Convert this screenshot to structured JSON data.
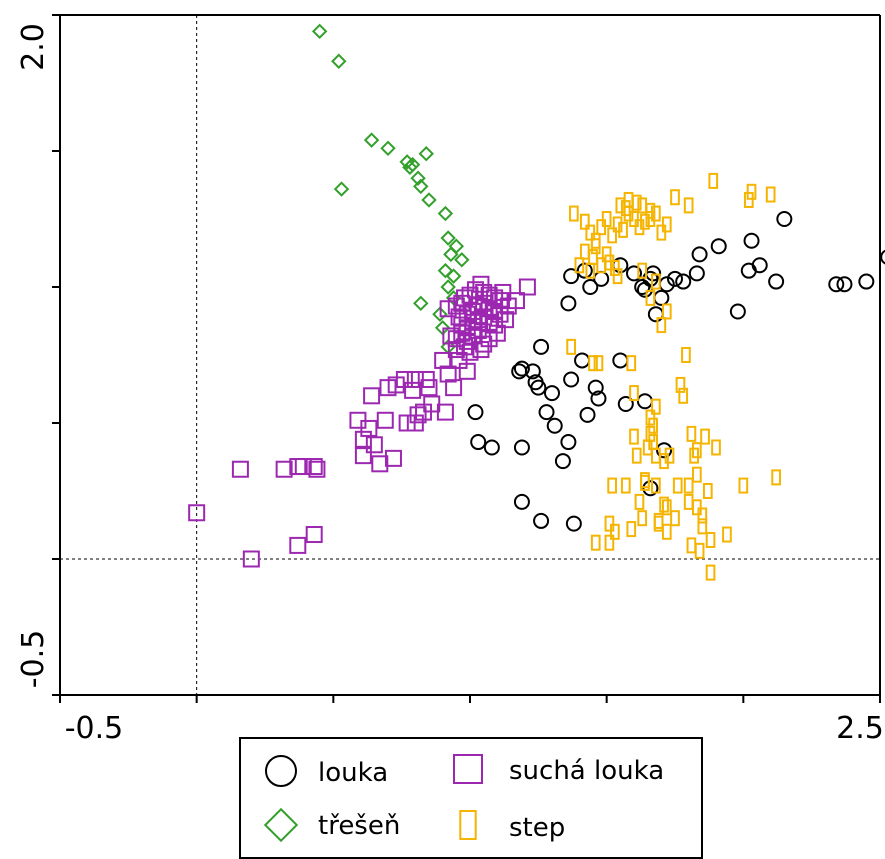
{
  "chart_data": {
    "type": "scatter",
    "title": "",
    "xlabel": "",
    "ylabel": "",
    "xlim": [
      -0.5,
      2.5
    ],
    "ylim": [
      -0.5,
      2.0
    ],
    "x_tick_labels": [
      "-0.5",
      "2.5"
    ],
    "y_tick_labels": [
      "-0.5",
      "2.0"
    ],
    "x_ticks": [
      -0.5,
      0.0,
      0.5,
      1.0,
      1.5,
      2.0,
      2.5
    ],
    "y_ticks": [
      -0.5,
      0.0,
      0.5,
      1.0,
      1.5,
      2.0
    ],
    "reference_lines": {
      "x": 0,
      "y": 0
    },
    "grid": false,
    "legend_position": "bottom-center",
    "series": [
      {
        "name": "louka",
        "marker": "circle",
        "color": "#000000",
        "points": [
          [
            1.37,
            1.04
          ],
          [
            1.42,
            1.06
          ],
          [
            1.44,
            1.0
          ],
          [
            1.36,
            0.94
          ],
          [
            1.48,
            1.03
          ],
          [
            1.55,
            1.08
          ],
          [
            1.6,
            1.05
          ],
          [
            1.63,
            1.0
          ],
          [
            1.67,
            1.05
          ],
          [
            1.72,
            1.01
          ],
          [
            1.75,
            1.03
          ],
          [
            1.78,
            1.02
          ],
          [
            1.83,
            1.05
          ],
          [
            1.66,
            1.03
          ],
          [
            1.64,
            0.99
          ],
          [
            1.7,
            0.96
          ],
          [
            1.68,
            0.9
          ],
          [
            1.84,
            1.12
          ],
          [
            1.91,
            1.15
          ],
          [
            2.03,
            1.17
          ],
          [
            2.15,
            1.25
          ],
          [
            2.02,
            1.06
          ],
          [
            2.06,
            1.08
          ],
          [
            1.98,
            0.91
          ],
          [
            2.12,
            1.02
          ],
          [
            2.34,
            1.01
          ],
          [
            2.37,
            1.01
          ],
          [
            2.45,
            1.02
          ],
          [
            2.53,
            1.11
          ],
          [
            1.26,
            0.78
          ],
          [
            1.19,
            0.7
          ],
          [
            1.18,
            0.69
          ],
          [
            1.23,
            0.69
          ],
          [
            1.24,
            0.65
          ],
          [
            1.25,
            0.63
          ],
          [
            1.3,
            0.61
          ],
          [
            1.37,
            0.66
          ],
          [
            1.41,
            0.73
          ],
          [
            1.46,
            0.63
          ],
          [
            1.47,
            0.59
          ],
          [
            1.57,
            0.57
          ],
          [
            1.64,
            0.58
          ],
          [
            1.55,
            0.73
          ],
          [
            1.43,
            0.53
          ],
          [
            1.31,
            0.49
          ],
          [
            1.36,
            0.43
          ],
          [
            1.34,
            0.36
          ],
          [
            1.28,
            0.54
          ],
          [
            1.08,
            0.41
          ],
          [
            1.02,
            0.54
          ],
          [
            1.03,
            0.43
          ],
          [
            1.19,
            0.41
          ],
          [
            1.66,
            0.26
          ],
          [
            1.71,
            0.4
          ],
          [
            1.38,
            0.13
          ],
          [
            1.26,
            0.14
          ],
          [
            1.19,
            0.21
          ]
        ]
      },
      {
        "name": "třešeň",
        "marker": "diamond",
        "color": "#33a02c",
        "points": [
          [
            0.45,
            1.94
          ],
          [
            0.52,
            1.83
          ],
          [
            0.64,
            1.54
          ],
          [
            0.7,
            1.51
          ],
          [
            0.77,
            1.46
          ],
          [
            0.78,
            1.44
          ],
          [
            0.79,
            1.45
          ],
          [
            0.81,
            1.4
          ],
          [
            0.82,
            1.37
          ],
          [
            0.84,
            1.49
          ],
          [
            0.53,
            1.36
          ],
          [
            0.85,
            1.32
          ],
          [
            0.91,
            1.27
          ],
          [
            0.92,
            1.18
          ],
          [
            0.93,
            1.12
          ],
          [
            0.95,
            1.15
          ],
          [
            0.97,
            1.1
          ],
          [
            0.94,
            1.04
          ],
          [
            0.91,
            1.06
          ],
          [
            0.92,
            1.0
          ],
          [
            0.94,
            0.96
          ],
          [
            0.82,
            0.94
          ],
          [
            0.89,
            0.9
          ],
          [
            0.9,
            0.85
          ],
          [
            0.92,
            0.78
          ]
        ]
      },
      {
        "name": "suchá louka",
        "marker": "square",
        "color": "#9c27b0",
        "points": [
          [
            0.92,
            0.92
          ],
          [
            0.95,
            0.93
          ],
          [
            0.97,
            0.94
          ],
          [
            0.98,
            0.96
          ],
          [
            1.0,
            0.97
          ],
          [
            1.02,
            0.99
          ],
          [
            1.04,
            1.01
          ],
          [
            1.05,
            0.98
          ],
          [
            1.07,
            0.97
          ],
          [
            1.09,
            0.96
          ],
          [
            1.11,
            0.95
          ],
          [
            1.12,
            0.98
          ],
          [
            0.96,
            0.89
          ],
          [
            0.99,
            0.9
          ],
          [
            1.01,
            0.91
          ],
          [
            1.03,
            0.93
          ],
          [
            1.05,
            0.94
          ],
          [
            1.07,
            0.92
          ],
          [
            1.09,
            0.91
          ],
          [
            1.11,
            0.9
          ],
          [
            0.97,
            0.86
          ],
          [
            0.99,
            0.85
          ],
          [
            1.01,
            0.87
          ],
          [
            1.03,
            0.88
          ],
          [
            1.05,
            0.89
          ],
          [
            1.07,
            0.87
          ],
          [
            1.09,
            0.86
          ],
          [
            0.93,
            0.82
          ],
          [
            0.95,
            0.81
          ],
          [
            0.97,
            0.83
          ],
          [
            0.99,
            0.8
          ],
          [
            1.01,
            0.82
          ],
          [
            1.03,
            0.84
          ],
          [
            1.05,
            0.79
          ],
          [
            1.07,
            0.81
          ],
          [
            1.1,
            0.83
          ],
          [
            0.95,
            0.77
          ],
          [
            0.98,
            0.78
          ],
          [
            1.0,
            0.76
          ],
          [
            1.04,
            0.77
          ],
          [
            1.14,
            0.93
          ],
          [
            1.17,
            0.95
          ],
          [
            1.21,
            1.0
          ],
          [
            1.13,
            0.88
          ],
          [
            0.96,
            0.73
          ],
          [
            0.99,
            0.69
          ],
          [
            0.9,
            0.73
          ],
          [
            0.92,
            0.68
          ],
          [
            0.94,
            0.63
          ],
          [
            0.85,
            0.63
          ],
          [
            0.79,
            0.62
          ],
          [
            0.8,
            0.66
          ],
          [
            0.76,
            0.66
          ],
          [
            0.73,
            0.64
          ],
          [
            0.7,
            0.63
          ],
          [
            0.84,
            0.66
          ],
          [
            0.64,
            0.6
          ],
          [
            0.69,
            0.51
          ],
          [
            0.63,
            0.48
          ],
          [
            0.59,
            0.51
          ],
          [
            0.86,
            0.57
          ],
          [
            0.91,
            0.54
          ],
          [
            0.83,
            0.54
          ],
          [
            0.8,
            0.5
          ],
          [
            0.77,
            0.5
          ],
          [
            0.81,
            0.53
          ],
          [
            0.61,
            0.44
          ],
          [
            0.65,
            0.42
          ],
          [
            0.72,
            0.37
          ],
          [
            0.67,
            0.35
          ],
          [
            0.61,
            0.38
          ],
          [
            0.43,
            0.34
          ],
          [
            0.44,
            0.33
          ],
          [
            0.37,
            0.34
          ],
          [
            0.32,
            0.33
          ],
          [
            0.39,
            0.34
          ],
          [
            0.16,
            0.33
          ],
          [
            0.43,
            0.09
          ],
          [
            0.37,
            0.05
          ],
          [
            0.0,
            0.17
          ],
          [
            0.2,
            0.0
          ]
        ]
      },
      {
        "name": "step",
        "marker": "rect",
        "color": "#f5b400",
        "points": [
          [
            1.38,
            1.27
          ],
          [
            1.42,
            1.24
          ],
          [
            1.44,
            1.2
          ],
          [
            1.46,
            1.17
          ],
          [
            1.48,
            1.22
          ],
          [
            1.5,
            1.25
          ],
          [
            1.52,
            1.19
          ],
          [
            1.54,
            1.23
          ],
          [
            1.56,
            1.21
          ],
          [
            1.57,
            1.29
          ],
          [
            1.58,
            1.27
          ],
          [
            1.6,
            1.25
          ],
          [
            1.62,
            1.22
          ],
          [
            1.64,
            1.24
          ],
          [
            1.66,
            1.25
          ],
          [
            1.68,
            1.27
          ],
          [
            1.7,
            1.2
          ],
          [
            1.72,
            1.23
          ],
          [
            1.55,
            1.3
          ],
          [
            1.58,
            1.32
          ],
          [
            1.61,
            1.31
          ],
          [
            1.63,
            1.3
          ],
          [
            1.66,
            1.28
          ],
          [
            1.75,
            1.33
          ],
          [
            1.8,
            1.3
          ],
          [
            1.89,
            1.39
          ],
          [
            2.02,
            1.32
          ],
          [
            2.03,
            1.35
          ],
          [
            2.1,
            1.34
          ],
          [
            1.42,
            1.13
          ],
          [
            1.4,
            1.08
          ],
          [
            1.46,
            1.15
          ],
          [
            1.45,
            1.11
          ],
          [
            1.48,
            1.08
          ],
          [
            1.44,
            1.06
          ],
          [
            1.5,
            1.12
          ],
          [
            1.51,
            1.09
          ],
          [
            1.54,
            1.04
          ],
          [
            1.53,
            1.07
          ],
          [
            1.63,
            1.06
          ],
          [
            1.66,
            0.96
          ],
          [
            1.68,
            1.02
          ],
          [
            1.7,
            0.86
          ],
          [
            1.72,
            0.91
          ],
          [
            1.79,
            0.75
          ],
          [
            1.77,
            0.64
          ],
          [
            1.78,
            0.6
          ],
          [
            1.37,
            0.78
          ],
          [
            1.45,
            0.72
          ],
          [
            1.6,
            0.61
          ],
          [
            1.66,
            0.52
          ],
          [
            1.68,
            0.56
          ],
          [
            1.67,
            0.49
          ],
          [
            1.66,
            0.46
          ],
          [
            1.67,
            0.43
          ],
          [
            1.65,
            0.41
          ],
          [
            1.68,
            0.38
          ],
          [
            1.71,
            0.36
          ],
          [
            1.64,
            0.29
          ],
          [
            1.73,
            0.38
          ],
          [
            1.81,
            0.46
          ],
          [
            1.82,
            0.38
          ],
          [
            1.61,
            0.38
          ],
          [
            1.69,
            0.13
          ],
          [
            1.72,
            0.19
          ],
          [
            1.83,
            0.19
          ],
          [
            1.83,
            0.4
          ],
          [
            1.8,
            0.27
          ],
          [
            1.76,
            0.27
          ],
          [
            1.87,
            0.25
          ],
          [
            1.52,
            0.27
          ],
          [
            1.69,
            0.14
          ],
          [
            1.72,
            0.1
          ],
          [
            1.51,
            0.13
          ],
          [
            1.46,
            0.06
          ],
          [
            1.53,
            0.1
          ],
          [
            1.71,
            0.2
          ],
          [
            1.8,
            0.21
          ],
          [
            1.85,
            0.12
          ],
          [
            1.83,
            0.31
          ],
          [
            1.94,
            0.09
          ],
          [
            1.6,
            0.45
          ],
          [
            1.64,
            0.28
          ],
          [
            1.57,
            0.27
          ],
          [
            1.68,
            0.27
          ],
          [
            2.12,
            0.3
          ],
          [
            1.9,
            0.41
          ],
          [
            1.86,
            0.45
          ],
          [
            1.59,
            0.72
          ],
          [
            1.47,
            0.72
          ],
          [
            1.88,
            0.07
          ],
          [
            1.88,
            -0.05
          ],
          [
            1.84,
            0.03
          ],
          [
            1.85,
            0.16
          ],
          [
            1.75,
            0.15
          ],
          [
            1.81,
            0.05
          ],
          [
            1.51,
            0.06
          ],
          [
            1.63,
            0.15
          ],
          [
            1.59,
            0.11
          ],
          [
            2.0,
            0.27
          ],
          [
            1.62,
            0.21
          ]
        ]
      }
    ]
  },
  "legend": {
    "items": [
      {
        "label": "louka",
        "marker": "circle",
        "color": "#000000"
      },
      {
        "label": "suchá louka",
        "marker": "square",
        "color": "#9c27b0"
      },
      {
        "label": "třešeň",
        "marker": "diamond",
        "color": "#33a02c"
      },
      {
        "label": "step",
        "marker": "rect",
        "color": "#f5b400"
      }
    ]
  }
}
